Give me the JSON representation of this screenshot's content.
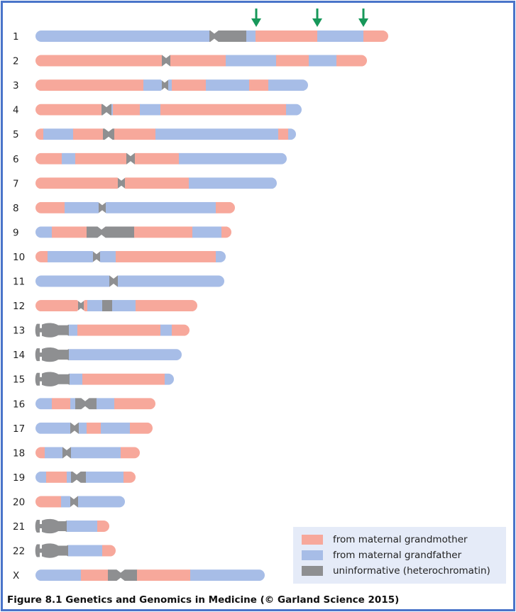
{
  "colors": {
    "maternal_grandmother": "#f7a89b",
    "maternal_grandfather": "#a7bde7",
    "uninformative": "#8e8f91",
    "arrow": "#17985a",
    "border": "#4a74c9"
  },
  "legend": {
    "items": [
      {
        "key": "P",
        "label": "from maternal grandmother"
      },
      {
        "key": "B",
        "label": "from maternal grandfather"
      },
      {
        "key": "G",
        "label": "uninformative (heterochromatin)"
      }
    ]
  },
  "caption": "Figure 8.1  Genetics and Genomics in Medicine (© Garland Science 2015)",
  "arrows": {
    "chromosome": "1",
    "positions": [
      155.5,
      198.5,
      231
    ]
  },
  "chromosomes": [
    {
      "label": "1",
      "cen": 126,
      "segments": [
        [
          "B",
          122.5
        ],
        [
          "G",
          148.5
        ],
        [
          "B",
          155
        ],
        [
          "P",
          198.5
        ],
        [
          "B",
          231
        ],
        [
          "P",
          248.5
        ]
      ]
    },
    {
      "label": "2",
      "cen": 92,
      "segments": [
        [
          "P",
          89
        ],
        [
          "G",
          95
        ],
        [
          "P",
          134
        ],
        [
          "B",
          169.5
        ],
        [
          "P",
          192.5
        ],
        [
          "B",
          212
        ],
        [
          "P",
          233.5
        ]
      ]
    },
    {
      "label": "3",
      "cen": 91,
      "segments": [
        [
          "P",
          76
        ],
        [
          "B",
          89
        ],
        [
          "G",
          93.5
        ],
        [
          "B",
          96
        ],
        [
          "P",
          120
        ],
        [
          "B",
          150.5
        ],
        [
          "P",
          164
        ],
        [
          "B",
          192
        ]
      ]
    },
    {
      "label": "4",
      "cen": 50,
      "segments": [
        [
          "P",
          46.5
        ],
        [
          "G",
          53.5
        ],
        [
          "B",
          54.5
        ],
        [
          "P",
          73.5
        ],
        [
          "B",
          88
        ],
        [
          "P",
          176.5
        ],
        [
          "B",
          187.5
        ]
      ]
    },
    {
      "label": "5",
      "cen": 51.5,
      "segments": [
        [
          "P",
          5.5
        ],
        [
          "B",
          26.5
        ],
        [
          "P",
          47.5
        ],
        [
          "G",
          55.5
        ],
        [
          "P",
          84.5
        ],
        [
          "B",
          171
        ],
        [
          "P",
          178
        ],
        [
          "B",
          183.5
        ]
      ]
    },
    {
      "label": "6",
      "cen": 67,
      "segments": [
        [
          "P",
          18.5
        ],
        [
          "B",
          28
        ],
        [
          "P",
          64
        ],
        [
          "G",
          70
        ],
        [
          "P",
          101
        ],
        [
          "B",
          177
        ]
      ]
    },
    {
      "label": "7",
      "cen": 60.5,
      "segments": [
        [
          "P",
          58
        ],
        [
          "G",
          63
        ],
        [
          "P",
          108
        ],
        [
          "B",
          170
        ]
      ]
    },
    {
      "label": "8",
      "cen": 47,
      "segments": [
        [
          "P",
          20.5
        ],
        [
          "B",
          44.5
        ],
        [
          "G",
          49.5
        ],
        [
          "B",
          127
        ],
        [
          "P",
          140.5
        ]
      ]
    },
    {
      "label": "9",
      "cen": 46.5,
      "segments": [
        [
          "B",
          11.5
        ],
        [
          "P",
          36
        ],
        [
          "G",
          69.5
        ],
        [
          "P",
          110.5
        ],
        [
          "B",
          131
        ],
        [
          "P",
          138
        ]
      ]
    },
    {
      "label": "10",
      "cen": 43,
      "segments": [
        [
          "P",
          8.5
        ],
        [
          "B",
          40.5
        ],
        [
          "G",
          45.5
        ],
        [
          "B",
          56.5
        ],
        [
          "P",
          127
        ],
        [
          "B",
          134
        ]
      ]
    },
    {
      "label": "11",
      "cen": 55,
      "segments": [
        [
          "B",
          52
        ],
        [
          "G",
          58
        ],
        [
          "B",
          133
        ]
      ]
    },
    {
      "label": "12",
      "cen": 32,
      "segments": [
        [
          "P",
          30
        ],
        [
          "G",
          34
        ],
        [
          "P",
          36.5
        ],
        [
          "B",
          47
        ],
        [
          "G",
          54
        ],
        [
          "B",
          70.5
        ],
        [
          "P",
          114
        ]
      ]
    },
    {
      "label": "13",
      "acrocentric": true,
      "segments": [
        [
          "G",
          23.5
        ],
        [
          "B",
          29.5
        ],
        [
          "P",
          88
        ],
        [
          "B",
          96
        ],
        [
          "P",
          108.5
        ]
      ]
    },
    {
      "label": "14",
      "acrocentric": true,
      "segments": [
        [
          "G",
          23.5
        ],
        [
          "B",
          103
        ]
      ]
    },
    {
      "label": "15",
      "acrocentric": true,
      "segments": [
        [
          "G",
          24
        ],
        [
          "B",
          33
        ],
        [
          "P",
          91
        ],
        [
          "B",
          97.5
        ]
      ]
    },
    {
      "label": "16",
      "cen": 35,
      "segments": [
        [
          "B",
          11.5
        ],
        [
          "P",
          24.5
        ],
        [
          "B",
          28
        ],
        [
          "G",
          43
        ],
        [
          "B",
          55.5
        ],
        [
          "P",
          84.5
        ]
      ]
    },
    {
      "label": "17",
      "cen": 27.5,
      "segments": [
        [
          "B",
          24.5
        ],
        [
          "G",
          30.5
        ],
        [
          "B",
          36
        ],
        [
          "P",
          46
        ],
        [
          "B",
          66.5
        ],
        [
          "P",
          82.5
        ]
      ]
    },
    {
      "label": "18",
      "cen": 22,
      "segments": [
        [
          "P",
          6.5
        ],
        [
          "B",
          19
        ],
        [
          "G",
          25
        ],
        [
          "B",
          60
        ],
        [
          "P",
          73.5
        ]
      ]
    },
    {
      "label": "19",
      "cen": 29,
      "segments": [
        [
          "B",
          7.5
        ],
        [
          "P",
          22
        ],
        [
          "B",
          25
        ],
        [
          "G",
          35.5
        ],
        [
          "B",
          62
        ],
        [
          "P",
          70.5
        ]
      ]
    },
    {
      "label": "20",
      "cen": 27,
      "segments": [
        [
          "P",
          18
        ],
        [
          "B",
          24.5
        ],
        [
          "G",
          30
        ],
        [
          "B",
          63
        ]
      ]
    },
    {
      "label": "21",
      "acrocentric": true,
      "segments": [
        [
          "G",
          22
        ],
        [
          "B",
          43.5
        ],
        [
          "P",
          52
        ]
      ]
    },
    {
      "label": "22",
      "acrocentric": true,
      "segments": [
        [
          "G",
          23
        ],
        [
          "B",
          47
        ],
        [
          "P",
          56.5
        ]
      ]
    },
    {
      "label": "X",
      "cen": 60,
      "segments": [
        [
          "B",
          32
        ],
        [
          "P",
          51
        ],
        [
          "G",
          71.5
        ],
        [
          "P",
          109
        ],
        [
          "B",
          161.5
        ]
      ]
    }
  ]
}
